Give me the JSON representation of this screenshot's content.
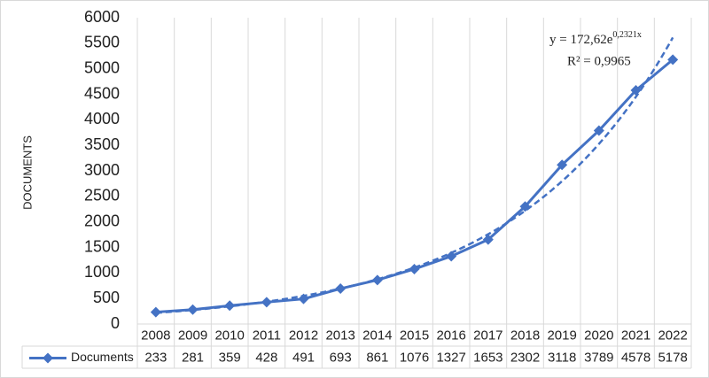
{
  "chart_data": {
    "type": "line",
    "y_axis_title": "DOCUMENTS",
    "categories": [
      "2008",
      "2009",
      "2010",
      "2011",
      "2012",
      "2013",
      "2014",
      "2015",
      "2016",
      "2017",
      "2018",
      "2019",
      "2020",
      "2021",
      "2022"
    ],
    "series": [
      {
        "name": "Documents",
        "color": "#4472c4",
        "values": [
          233,
          281,
          359,
          428,
          491,
          693,
          861,
          1076,
          1327,
          1653,
          2302,
          3118,
          3789,
          4578,
          5178
        ]
      }
    ],
    "trendline": {
      "type": "exponential",
      "a": 172.62,
      "b": 0.2321,
      "equation": {
        "base": "y = 172,62e",
        "exponent": "0,2321x"
      },
      "r_squared": "R² = 0,9965"
    },
    "ylim": [
      0,
      6000
    ],
    "yticks": [
      0,
      500,
      1000,
      1500,
      2000,
      2500,
      3000,
      3500,
      4000,
      4500,
      5000,
      5500,
      6000
    ],
    "grid": "vertical",
    "data_table": true
  }
}
